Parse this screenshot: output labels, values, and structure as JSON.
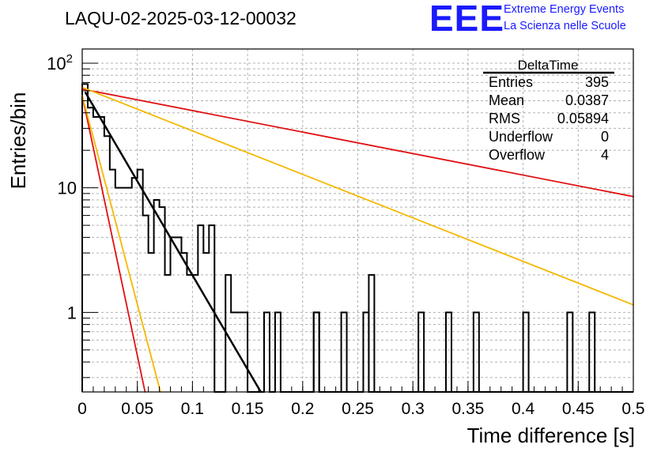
{
  "title": "LAQU-02-2025-03-12-00032",
  "logo": {
    "mark": "EEE",
    "line1": "Extreme Energy Events",
    "line2": "La Scienza nelle Scuole",
    "color": "#1a1aff"
  },
  "stats_box": {
    "name": "DeltaTime",
    "rows": [
      {
        "label": "Entries",
        "value": "395"
      },
      {
        "label": "Mean",
        "value": "0.0387"
      },
      {
        "label": "RMS",
        "value": "0.05894"
      },
      {
        "label": "Underflow",
        "value": "0"
      },
      {
        "label": "Overflow",
        "value": "4"
      }
    ]
  },
  "chart_data": {
    "type": "histogram",
    "xlabel": "Time difference [s]",
    "ylabel": "Entries/bin",
    "xlim": [
      0,
      0.5
    ],
    "ylim": [
      0.23,
      130
    ],
    "log_y": true,
    "grid": true,
    "x_ticks": [
      "0",
      "0.05",
      "0.1",
      "0.15",
      "0.2",
      "0.25",
      "0.3",
      "0.35",
      "0.4",
      "0.45",
      "0.5"
    ],
    "y_ticks": [
      "1",
      "10",
      "10^2"
    ],
    "bin_width": 0.005,
    "histogram": {
      "color": "#000000",
      "bin_edges_start": 0,
      "counts": [
        68,
        44,
        37,
        37,
        26,
        14,
        10,
        10,
        10,
        12,
        14,
        6,
        3,
        8,
        7,
        2,
        4,
        4,
        3,
        2,
        2,
        5,
        3,
        5,
        0,
        0,
        2,
        1,
        1,
        1,
        0,
        0,
        0,
        1,
        0,
        1,
        0,
        0,
        0,
        0,
        0,
        0,
        1,
        0,
        0,
        0,
        0,
        0,
        0,
        0,
        0,
        1,
        0,
        0,
        0,
        0,
        0,
        0,
        0,
        0,
        0,
        0,
        0,
        0,
        0,
        0,
        0,
        0,
        0,
        0,
        0,
        0,
        0,
        0,
        0,
        0,
        0,
        0,
        0,
        0,
        0,
        0,
        0,
        0,
        0,
        0,
        0,
        0,
        0,
        0,
        0,
        0,
        0,
        0,
        0,
        0,
        0,
        0,
        0,
        0
      ],
      "extra_spikes": [
        {
          "x": 0.21,
          "value": 1
        },
        {
          "x": 0.235,
          "value": 1
        },
        {
          "x": 0.26,
          "value": 2
        },
        {
          "x": 0.305,
          "value": 1
        },
        {
          "x": 0.33,
          "value": 1
        },
        {
          "x": 0.355,
          "value": 1
        },
        {
          "x": 0.4,
          "value": 1
        },
        {
          "x": 0.44,
          "value": 1
        },
        {
          "x": 0.46,
          "value": 1
        }
      ]
    },
    "fit_lines": [
      {
        "name": "fit",
        "color": "#000000",
        "width": 2.5,
        "x": [
          0.003,
          0.162
        ],
        "y": [
          58,
          0.23
        ]
      },
      {
        "name": "upper-slow",
        "color": "#e01010",
        "width": 1.8,
        "x": [
          0.0,
          0.5
        ],
        "y": [
          62,
          8.5
        ]
      },
      {
        "name": "upper-fast",
        "color": "#e01010",
        "width": 1.8,
        "x": [
          0.0,
          0.057
        ],
        "y": [
          55,
          0.23
        ]
      },
      {
        "name": "lower-slow",
        "color": "#f5b800",
        "width": 1.8,
        "x": [
          0.0,
          0.5
        ],
        "y": [
          64,
          1.15
        ]
      },
      {
        "name": "lower-fast",
        "color": "#f5b800",
        "width": 1.8,
        "x": [
          0.0,
          0.071
        ],
        "y": [
          55,
          0.23
        ]
      }
    ]
  }
}
